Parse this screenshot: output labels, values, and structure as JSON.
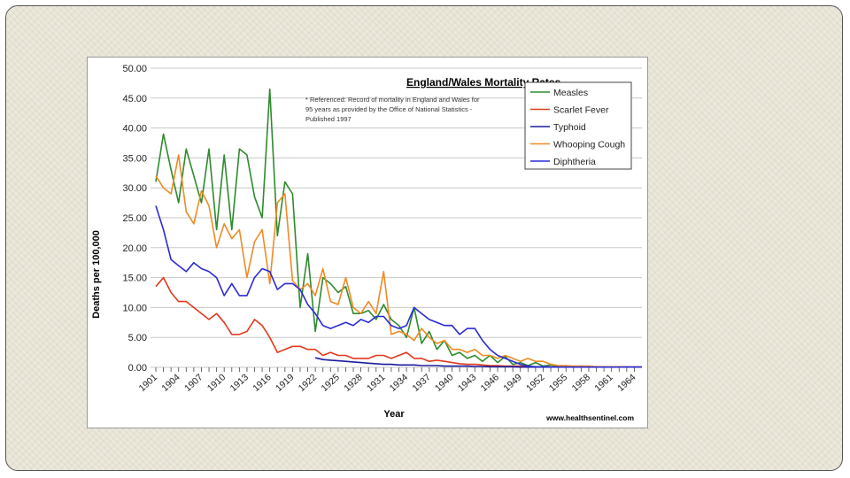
{
  "colors": {
    "measles": "#2e8b2e",
    "scarlet_fever": "#e03a1e",
    "typhoid": "#1c1c9e",
    "whooping_cough": "#f08a24",
    "diphtheria": "#2b2bd6",
    "gridline": "#c8c8c8",
    "frame": "#ece9dc"
  },
  "chart_data": {
    "type": "line",
    "title": "England/Wales Mortality Rates",
    "note": "* Referenced: Record of mortality in England and Wales for 95 years as provided by the Office of National Statistics - Published 1997",
    "xlabel": "Year",
    "ylabel": "Deaths per 100,000",
    "source": "www.healthsentinel.com",
    "xlim": [
      1901,
      1965
    ],
    "ylim": [
      0,
      50
    ],
    "x_tick_labels": [
      "1901",
      "1904",
      "1907",
      "1910",
      "1913",
      "1916",
      "1919",
      "1922",
      "1925",
      "1928",
      "1931",
      "1934",
      "1937",
      "1940",
      "1943",
      "1946",
      "1949",
      "1952",
      "1955",
      "1958",
      "1961",
      "1964"
    ],
    "y_tick_labels": [
      "0.00",
      "5.00",
      "10.00",
      "15.00",
      "20.00",
      "25.00",
      "30.00",
      "35.00",
      "40.00",
      "45.00",
      "50.00"
    ],
    "grid": "horizontal",
    "legend_position": "top-right",
    "series": [
      {
        "name": "Measles",
        "color_key": "measles",
        "x": [
          1901,
          1902,
          1903,
          1904,
          1905,
          1906,
          1907,
          1908,
          1909,
          1910,
          1911,
          1912,
          1913,
          1914,
          1915,
          1916,
          1917,
          1918,
          1919,
          1920,
          1921,
          1922,
          1923,
          1924,
          1925,
          1926,
          1927,
          1928,
          1929,
          1930,
          1931,
          1932,
          1933,
          1934,
          1935,
          1936,
          1937,
          1938,
          1939,
          1940,
          1941,
          1942,
          1943,
          1944,
          1945,
          1946,
          1947,
          1948,
          1949,
          1950,
          1951,
          1952,
          1953,
          1954,
          1955,
          1956,
          1957,
          1958,
          1959,
          1960,
          1961,
          1962,
          1963,
          1964,
          1965
        ],
        "y": [
          31,
          39,
          33,
          27.5,
          36.5,
          32,
          27.5,
          36.5,
          23,
          35.5,
          23,
          36.5,
          35.5,
          28.5,
          25,
          46.5,
          22,
          31,
          29,
          10,
          19,
          6,
          15,
          14,
          12.5,
          13.5,
          9,
          9,
          9.5,
          8,
          10.5,
          8,
          7,
          5,
          10,
          4,
          6,
          3,
          4.5,
          2,
          2.5,
          1.5,
          2,
          1,
          2,
          0.8,
          1.8,
          0.5,
          0.8,
          0.3,
          0.8,
          0.2,
          0.4,
          0.15,
          0.2,
          0.1,
          0.2,
          0.1,
          0.1,
          0.1,
          0.1,
          0.1,
          0.05,
          0.05,
          0.05
        ]
      },
      {
        "name": "Scarlet Fever",
        "color_key": "scarlet_fever",
        "x": [
          1901,
          1902,
          1903,
          1904,
          1905,
          1906,
          1907,
          1908,
          1909,
          1910,
          1911,
          1912,
          1913,
          1914,
          1915,
          1916,
          1917,
          1918,
          1919,
          1920,
          1921,
          1922,
          1923,
          1924,
          1925,
          1926,
          1927,
          1928,
          1929,
          1930,
          1931,
          1932,
          1933,
          1934,
          1935,
          1936,
          1937,
          1938,
          1939,
          1940,
          1941,
          1942,
          1943,
          1944,
          1945,
          1946,
          1947,
          1948,
          1949,
          1950,
          1951,
          1952,
          1953,
          1954,
          1955,
          1956,
          1957,
          1958,
          1959,
          1960,
          1961,
          1962,
          1963,
          1964,
          1965
        ],
        "y": [
          13.5,
          15,
          12.5,
          11,
          11,
          10,
          9,
          8,
          9,
          7.5,
          5.5,
          5.5,
          6,
          8,
          7,
          5,
          2.5,
          3,
          3.5,
          3.5,
          3,
          3,
          2,
          2.5,
          2,
          2,
          1.5,
          1.5,
          1.5,
          2,
          2,
          1.5,
          2,
          2.5,
          1.5,
          1.5,
          1,
          1.2,
          1,
          0.8,
          0.6,
          0.5,
          0.5,
          0.4,
          0.3,
          0.3,
          0.2,
          0.2,
          0.2,
          0.1,
          0.1,
          0.1,
          0.05,
          0.05,
          0.05,
          0.05,
          0.05,
          0.05,
          0.05,
          0.05,
          0.05,
          0.05,
          0.05,
          0.05,
          0.05
        ]
      },
      {
        "name": "Typhoid",
        "color_key": "typhoid",
        "x": [
          1922,
          1923,
          1924,
          1925,
          1926,
          1927,
          1928,
          1929,
          1930,
          1931,
          1932,
          1933,
          1934,
          1935,
          1936,
          1937,
          1938,
          1939,
          1940,
          1941,
          1942,
          1943,
          1944,
          1945,
          1946,
          1947,
          1948,
          1949,
          1950,
          1951,
          1952,
          1953,
          1954,
          1955,
          1956,
          1957,
          1958,
          1959,
          1960,
          1961,
          1962,
          1963,
          1964,
          1965
        ],
        "y": [
          1.6,
          1.3,
          1.2,
          1.1,
          1,
          0.9,
          0.8,
          0.7,
          0.6,
          0.5,
          0.5,
          0.4,
          0.4,
          0.4,
          0.3,
          0.3,
          0.3,
          0.2,
          0.2,
          0.2,
          0.2,
          0.15,
          0.15,
          0.1,
          0.1,
          0.1,
          0.1,
          0.05,
          0.05,
          0.05,
          0.05,
          0.05,
          0.05,
          0.05,
          0.05,
          0.05,
          0.05,
          0.05,
          0.05,
          0.05,
          0.05,
          0.05,
          0.05,
          0.05
        ]
      },
      {
        "name": "Whooping Cough",
        "color_key": "whooping_cough",
        "x": [
          1901,
          1902,
          1903,
          1904,
          1905,
          1906,
          1907,
          1908,
          1909,
          1910,
          1911,
          1912,
          1913,
          1914,
          1915,
          1916,
          1917,
          1918,
          1919,
          1920,
          1921,
          1922,
          1923,
          1924,
          1925,
          1926,
          1927,
          1928,
          1929,
          1930,
          1931,
          1932,
          1933,
          1934,
          1935,
          1936,
          1937,
          1938,
          1939,
          1940,
          1941,
          1942,
          1943,
          1944,
          1945,
          1946,
          1947,
          1948,
          1949,
          1950,
          1951,
          1952,
          1953,
          1954,
          1955,
          1956,
          1957,
          1958,
          1959,
          1960,
          1961,
          1962,
          1963,
          1964,
          1965
        ],
        "y": [
          32,
          30,
          29,
          35.5,
          26,
          24,
          29.5,
          27,
          20,
          24,
          21.5,
          23,
          15,
          21,
          23,
          14,
          27.5,
          29,
          14.5,
          13,
          14,
          12,
          16.5,
          11,
          10.5,
          15,
          10,
          9,
          11,
          9,
          16,
          5.5,
          6,
          5.5,
          4.5,
          6.5,
          5,
          4,
          4.5,
          3,
          3,
          2.5,
          3,
          2,
          2,
          1.5,
          2,
          1.5,
          1,
          1.5,
          1,
          1,
          0.5,
          0.3,
          0.3,
          0.2,
          0.2,
          0.2,
          0.1,
          0.1,
          0.1,
          0.1,
          0.05,
          0.05,
          0.05
        ]
      },
      {
        "name": "Diphtheria",
        "color_key": "diphtheria",
        "x": [
          1901,
          1902,
          1903,
          1904,
          1905,
          1906,
          1907,
          1908,
          1909,
          1910,
          1911,
          1912,
          1913,
          1914,
          1915,
          1916,
          1917,
          1918,
          1919,
          1920,
          1921,
          1922,
          1923,
          1924,
          1925,
          1926,
          1927,
          1928,
          1929,
          1930,
          1931,
          1932,
          1933,
          1934,
          1935,
          1936,
          1937,
          1938,
          1939,
          1940,
          1941,
          1942,
          1943,
          1944,
          1945,
          1946,
          1947,
          1948,
          1949,
          1950,
          1951,
          1952,
          1953,
          1954,
          1955,
          1956,
          1957,
          1958,
          1959,
          1960,
          1961,
          1962,
          1963,
          1964,
          1965
        ],
        "y": [
          27,
          23,
          18,
          17,
          16,
          17.5,
          16.5,
          16,
          15,
          12,
          14,
          12,
          12,
          15,
          16.5,
          16,
          13,
          14,
          14,
          13,
          10.5,
          9,
          7,
          6.5,
          7,
          7.5,
          7,
          8,
          7.5,
          8.5,
          8.5,
          7,
          6.5,
          7,
          10,
          9,
          8,
          7.5,
          7,
          7,
          5.5,
          6.5,
          6.5,
          4.5,
          3,
          2,
          1.5,
          1,
          0.5,
          0.2,
          0.1,
          0.1,
          0.05,
          0.05,
          0.05,
          0.05,
          0.05,
          0.05,
          0.05,
          0.05,
          0.05,
          0.05,
          0.05,
          0.05,
          0.05
        ]
      }
    ]
  }
}
